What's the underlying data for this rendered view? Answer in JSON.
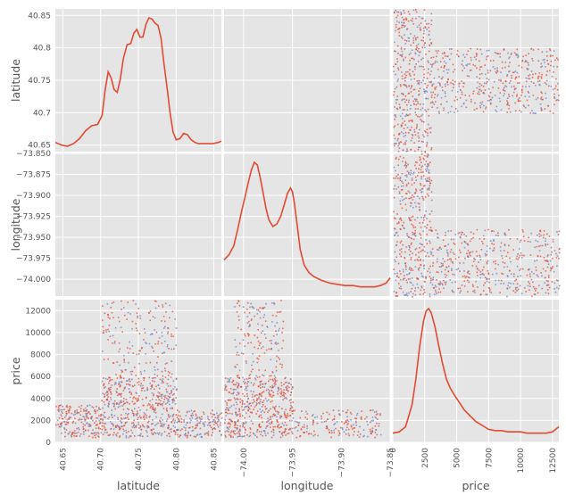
{
  "chart_data": {
    "type": "scatter",
    "subtype": "scatter-matrix",
    "style": "ggplot",
    "grid": true,
    "variables": [
      "latitude",
      "longitude",
      "price"
    ],
    "colors": {
      "panel_bg": "#e5e5e5",
      "grid": "#ffffff",
      "red": "#e24a33",
      "blue": "#6b7fc4",
      "kde": "#e24a33",
      "text": "#555555"
    },
    "axes": {
      "latitude": {
        "label": "latitude",
        "range": [
          40.64,
          40.86
        ],
        "ticks": [
          40.65,
          40.7,
          40.75,
          40.8,
          40.85
        ],
        "tick_labels": [
          "40.65",
          "40.70",
          "40.75",
          "40.80",
          "40.85"
        ],
        "y_tick_labels": [
          "40.65",
          "40.7",
          "40.75",
          "40.8",
          "40.85"
        ]
      },
      "longitude": {
        "label": "longitude",
        "range": [
          -74.02,
          -73.85
        ],
        "ticks": [
          -74.0,
          -73.95,
          -73.9,
          -73.85
        ],
        "tick_labels": [
          "−74.00",
          "−73.95",
          "−73.90",
          "−73.85"
        ],
        "y_ticks": [
          -74.0,
          -73.975,
          -73.95,
          -73.925,
          -73.9,
          -73.875,
          -73.85
        ],
        "y_tick_labels": [
          "−74.000",
          "−73.975",
          "−73.950",
          "−73.925",
          "−73.900",
          "−73.875",
          "−73.850"
        ]
      },
      "price": {
        "label": "price",
        "range": [
          0,
          13000
        ],
        "ticks": [
          0,
          2500,
          5000,
          7500,
          10000,
          12500
        ],
        "tick_labels": [
          "0",
          "2500",
          "5000",
          "7500",
          "10000",
          "12500"
        ],
        "y_ticks": [
          0,
          2000,
          4000,
          6000,
          8000,
          10000,
          12000
        ],
        "y_tick_labels": [
          "0",
          "2000",
          "4000",
          "6000",
          "8000",
          "10000",
          "12000"
        ]
      }
    },
    "kde": {
      "latitude": {
        "x": [
          40.64,
          40.648,
          40.656,
          40.664,
          40.672,
          40.68,
          40.688,
          40.696,
          40.702,
          40.706,
          40.71,
          40.714,
          40.718,
          40.722,
          40.726,
          40.73,
          40.735,
          40.74,
          40.744,
          40.748,
          40.752,
          40.756,
          40.76,
          40.764,
          40.768,
          40.772,
          40.776,
          40.78,
          40.784,
          40.788,
          40.792,
          40.796,
          40.8,
          40.805,
          40.81,
          40.815,
          40.82,
          40.825,
          40.83,
          40.835,
          40.84,
          40.848,
          40.856,
          40.86
        ],
        "y": [
          0.03,
          0.01,
          0.0,
          0.02,
          0.06,
          0.12,
          0.16,
          0.17,
          0.24,
          0.44,
          0.58,
          0.53,
          0.44,
          0.42,
          0.52,
          0.68,
          0.79,
          0.8,
          0.88,
          0.91,
          0.85,
          0.85,
          0.95,
          1.0,
          0.99,
          0.96,
          0.94,
          0.84,
          0.64,
          0.46,
          0.26,
          0.11,
          0.05,
          0.06,
          0.1,
          0.09,
          0.05,
          0.03,
          0.02,
          0.02,
          0.02,
          0.02,
          0.03,
          0.04
        ]
      },
      "longitude": {
        "x": [
          -74.02,
          -74.015,
          -74.01,
          -74.006,
          -74.002,
          -73.998,
          -73.995,
          -73.992,
          -73.989,
          -73.986,
          -73.983,
          -73.98,
          -73.977,
          -73.974,
          -73.97,
          -73.966,
          -73.962,
          -73.958,
          -73.955,
          -73.952,
          -73.95,
          -73.948,
          -73.945,
          -73.942,
          -73.938,
          -73.933,
          -73.928,
          -73.92,
          -73.912,
          -73.904,
          -73.896,
          -73.888,
          -73.88,
          -73.872,
          -73.866,
          -73.86,
          -73.854,
          -73.85
        ],
        "y": [
          0.24,
          0.28,
          0.35,
          0.48,
          0.62,
          0.75,
          0.85,
          0.94,
          1.0,
          0.98,
          0.88,
          0.76,
          0.64,
          0.55,
          0.5,
          0.52,
          0.58,
          0.68,
          0.76,
          0.8,
          0.77,
          0.68,
          0.5,
          0.32,
          0.2,
          0.14,
          0.11,
          0.08,
          0.06,
          0.05,
          0.04,
          0.04,
          0.03,
          0.03,
          0.03,
          0.04,
          0.06,
          0.1
        ]
      },
      "price": {
        "x": [
          0,
          500,
          1000,
          1500,
          1800,
          2100,
          2400,
          2600,
          2800,
          3000,
          3300,
          3600,
          3900,
          4200,
          4500,
          4800,
          5200,
          5600,
          6000,
          6500,
          7000,
          7500,
          8000,
          8500,
          9000,
          9500,
          10000,
          10500,
          11000,
          11500,
          12000,
          12500,
          13000
        ],
        "y": [
          0.03,
          0.04,
          0.08,
          0.25,
          0.45,
          0.7,
          0.9,
          0.98,
          1.0,
          0.97,
          0.86,
          0.71,
          0.57,
          0.45,
          0.38,
          0.33,
          0.27,
          0.21,
          0.17,
          0.12,
          0.09,
          0.06,
          0.05,
          0.05,
          0.04,
          0.04,
          0.04,
          0.03,
          0.03,
          0.03,
          0.03,
          0.04,
          0.08
        ]
      }
    },
    "scatter_clusters": {
      "longitude_vs_latitude": [
        {
          "x": [
            -74.01,
            -73.99
          ],
          "y": [
            40.7,
            40.74
          ],
          "w": 0.7
        },
        {
          "x": [
            -73.99,
            -73.96
          ],
          "y": [
            40.74,
            40.8
          ],
          "w": 1.0
        },
        {
          "x": [
            -73.99,
            -73.95
          ],
          "y": [
            40.75,
            40.78
          ],
          "w": 0.5
        },
        {
          "x": [
            -73.96,
            -73.93
          ],
          "y": [
            40.8,
            40.86
          ],
          "w": 0.7
        },
        {
          "x": [
            -73.97,
            -73.94
          ],
          "y": [
            40.66,
            40.7
          ],
          "w": 0.4
        },
        {
          "x": [
            -73.95,
            -73.92
          ],
          "y": [
            40.67,
            40.72
          ],
          "w": 0.3
        },
        {
          "x": [
            -73.93,
            -73.89
          ],
          "y": [
            40.74,
            40.78
          ],
          "w": 0.2
        },
        {
          "x": [
            -74.02,
            -73.85
          ],
          "y": [
            40.64,
            40.86
          ],
          "w": 0.25
        }
      ],
      "latitude_vs_longitude": [
        {
          "x": [
            40.7,
            40.74
          ],
          "y": [
            -74.01,
            -73.99
          ],
          "w": 0.8
        },
        {
          "x": [
            40.74,
            40.8
          ],
          "y": [
            -73.99,
            -73.96
          ],
          "w": 1.0
        },
        {
          "x": [
            40.78,
            40.86
          ],
          "y": [
            -73.96,
            -73.93
          ],
          "w": 0.7
        },
        {
          "x": [
            40.66,
            40.72
          ],
          "y": [
            -73.97,
            -73.92
          ],
          "w": 0.4
        },
        {
          "x": [
            40.64,
            40.86
          ],
          "y": [
            -74.02,
            -73.85
          ],
          "w": 0.25
        }
      ],
      "price_vs_latitude": [
        {
          "x": [
            40.7,
            40.8
          ],
          "y": [
            500,
            6000
          ],
          "w": 1.0
        },
        {
          "x": [
            40.7,
            40.8
          ],
          "y": [
            6000,
            13000
          ],
          "w": 0.35
        },
        {
          "x": [
            40.64,
            40.7
          ],
          "y": [
            500,
            3500
          ],
          "w": 0.4
        },
        {
          "x": [
            40.8,
            40.86
          ],
          "y": [
            500,
            3000
          ],
          "w": 0.3
        }
      ],
      "price_vs_longitude": [
        {
          "x": [
            -74.02,
            -73.95
          ],
          "y": [
            500,
            6000
          ],
          "w": 1.0
        },
        {
          "x": [
            -74.01,
            -73.96
          ],
          "y": [
            6000,
            13000
          ],
          "w": 0.3
        },
        {
          "x": [
            -73.95,
            -73.86
          ],
          "y": [
            500,
            3000
          ],
          "w": 0.35
        }
      ],
      "latitude_vs_price": [
        {
          "x": [
            0,
            3000
          ],
          "y": [
            40.64,
            40.86
          ],
          "w": 0.8
        },
        {
          "x": [
            3000,
            13000
          ],
          "y": [
            40.7,
            40.8
          ],
          "w": 0.9
        }
      ],
      "longitude_vs_price": [
        {
          "x": [
            0,
            3000
          ],
          "y": [
            -74.02,
            -73.85
          ],
          "w": 0.8
        },
        {
          "x": [
            3000,
            13000
          ],
          "y": [
            -74.02,
            -73.94
          ],
          "w": 0.9
        }
      ]
    }
  }
}
